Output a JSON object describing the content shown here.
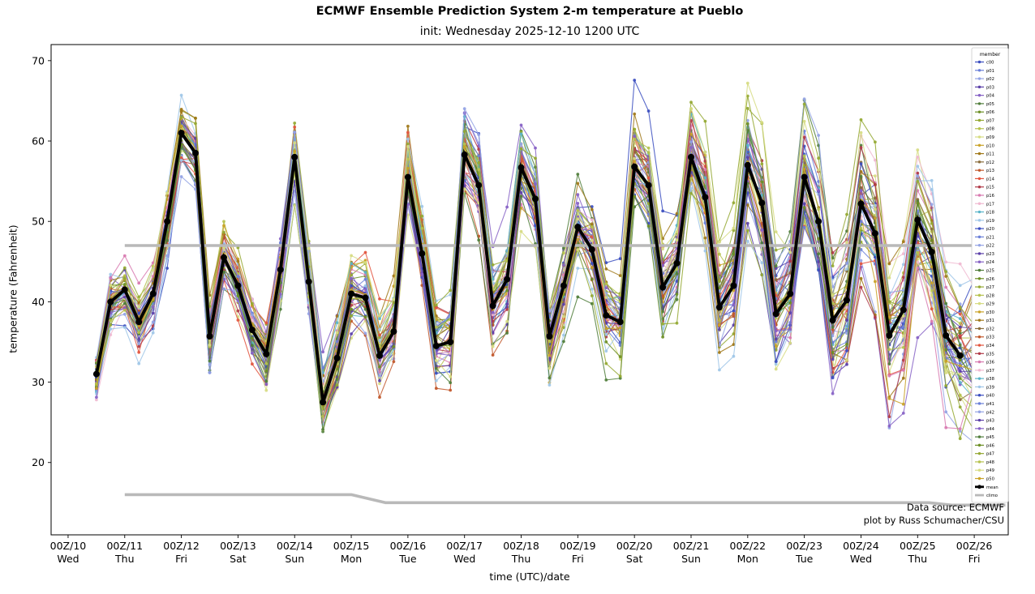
{
  "chart_data": {
    "type": "line",
    "title": "ECMWF Ensemble Prediction System 2-m temperature at Pueblo",
    "subtitle": "init: Wednesday 2025-12-10 1200 UTC",
    "xlabel": "time (UTC)/date",
    "ylabel": "temperature (Fahrenheit)",
    "ylim": [
      11,
      72
    ],
    "y_ticks": [
      20,
      30,
      40,
      50,
      60,
      70
    ],
    "x_axis": {
      "domain_days": [
        -0.3,
        16.6
      ],
      "tick_labels": [
        "00Z/10",
        "00Z/11",
        "00Z/12",
        "00Z/13",
        "00Z/14",
        "00Z/15",
        "00Z/16",
        "00Z/17",
        "00Z/18",
        "00Z/19",
        "00Z/20",
        "00Z/21",
        "00Z/22",
        "00Z/23",
        "00Z/24",
        "00Z/25",
        "00Z/26"
      ],
      "day_labels": [
        "Wed",
        "Thu",
        "Fri",
        "Sat",
        "Sun",
        "Mon",
        "Tue",
        "Wed",
        "Thu",
        "Fri",
        "Sat",
        "Sun",
        "Mon",
        "Tue",
        "Wed",
        "Thu",
        "Fri"
      ]
    },
    "series_start_day": 0.5,
    "step_days": 0.25,
    "mean": {
      "label": "mean",
      "color": "#000000",
      "values": [
        31,
        40,
        41.5,
        37.5,
        41,
        50,
        61,
        58.5,
        35.7,
        45.5,
        42,
        36.5,
        33.5,
        44,
        58,
        42.5,
        27.5,
        33,
        41,
        40.5,
        33.3,
        36.3,
        55.5,
        46,
        34.5,
        35,
        58.3,
        54.5,
        39.5,
        42.8,
        56.7,
        52.8,
        35.7,
        42,
        49.3,
        46.5,
        38.3,
        37.5,
        56.8,
        54.5,
        41.8,
        44.8,
        58,
        53,
        39.3,
        42,
        57,
        52.3,
        38.5,
        41,
        55.5,
        50,
        37.7,
        40.2,
        52.2,
        48.5,
        35.8,
        39,
        50.2,
        46.2,
        35.8,
        33.3
      ]
    },
    "climo": {
      "label": "climo",
      "color": "#b9b9b9",
      "upper": [
        [
          1.0,
          47
        ],
        [
          16.55,
          47
        ]
      ],
      "lower": [
        [
          1.0,
          16
        ],
        [
          5.0,
          16
        ],
        [
          5.6,
          15
        ],
        [
          15.2,
          15
        ],
        [
          15.6,
          14.7
        ],
        [
          16.55,
          14.7
        ]
      ]
    },
    "members": {
      "labels": [
        "c00",
        "p01",
        "p02",
        "p03",
        "p04",
        "p05",
        "p06",
        "p07",
        "p08",
        "p09",
        "p10",
        "p11",
        "p12",
        "p13",
        "p14",
        "p15",
        "p16",
        "p17",
        "p18",
        "p19",
        "p20",
        "p21",
        "p22",
        "p23",
        "p24",
        "p25",
        "p26",
        "p27",
        "p28",
        "p29",
        "p30",
        "p31",
        "p32",
        "p33",
        "p34",
        "p35",
        "p36",
        "p37",
        "p38",
        "p39",
        "p40",
        "p41",
        "p42",
        "p43",
        "p44",
        "p45",
        "p46",
        "p47",
        "p48",
        "p49",
        "p50"
      ],
      "palette": [
        "#3a4dbf",
        "#6a7fd8",
        "#93a3e4",
        "#5b3fa8",
        "#8661c5",
        "#4f7d3a",
        "#6b8e23",
        "#94a832",
        "#b6c24e",
        "#d6dc82",
        "#c9a227",
        "#a07818",
        "#8a6d3b",
        "#c1572a",
        "#e2543e",
        "#b03a48",
        "#d87ab0",
        "#f0b8d0",
        "#58b4c9",
        "#9fc6e8"
      ],
      "spread": {
        "start": 2.5,
        "end": 6.2,
        "persistence": 0.82,
        "noise_factor": 0.55,
        "seed": 42
      },
      "value_clamp": [
        13,
        68.6
      ]
    },
    "legend": {
      "title": "member"
    },
    "credits": [
      "Data source: ECMWF",
      "plot by Russ Schumacher/CSU"
    ]
  }
}
